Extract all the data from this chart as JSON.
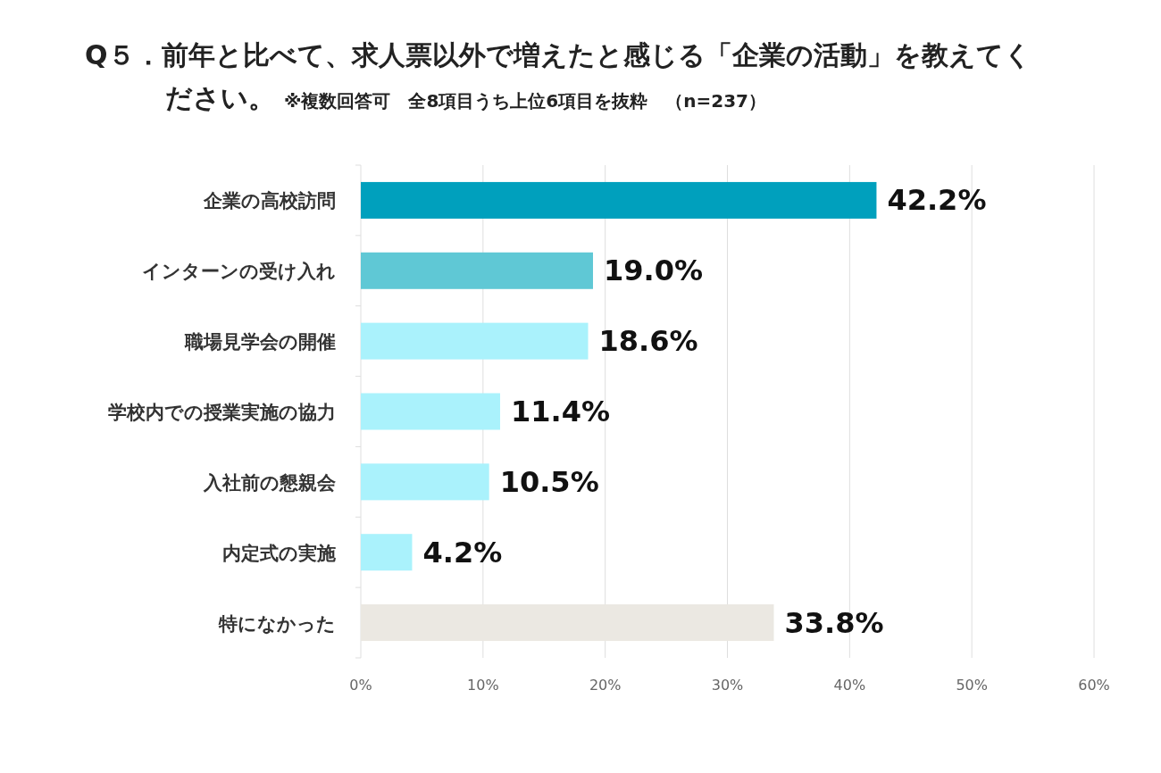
{
  "chart_data": {
    "type": "bar",
    "orientation": "horizontal",
    "title": "Q５．前年と比べて、求人票以外で増えたと感じる「企業の活動」を教えてください。",
    "subtitle": "※複数回答可　全8項目うち上位6項目を抜粋　（n=237）",
    "categories": [
      "企業の高校訪問",
      "インターンの受け入れ",
      "職場見学会の開催",
      "学校内での授業実施の協力",
      "入社前の懇親会",
      "内定式の実施",
      "特になかった"
    ],
    "values": [
      42.2,
      19.0,
      18.6,
      11.4,
      10.5,
      4.2,
      33.8
    ],
    "colors": [
      "#00a0bd",
      "#5fc8d5",
      "#aaf2fc",
      "#aaf2fc",
      "#aaf2fc",
      "#aaf2fc",
      "#ebe8e2"
    ],
    "value_labels": [
      "42.2%",
      "19.0%",
      "18.6%",
      "11.4%",
      "10.5%",
      "4.2%",
      "33.8%"
    ],
    "xlim": [
      0,
      60
    ],
    "xticks": [
      {
        "value": 0,
        "label": "0%"
      },
      {
        "value": 10,
        "label": "10%"
      },
      {
        "value": 20,
        "label": "20%"
      },
      {
        "value": 30,
        "label": "30%"
      },
      {
        "value": 40,
        "label": "40%"
      },
      {
        "value": 50,
        "label": "50%"
      },
      {
        "value": 60,
        "label": "60%"
      }
    ],
    "grid": "x"
  }
}
